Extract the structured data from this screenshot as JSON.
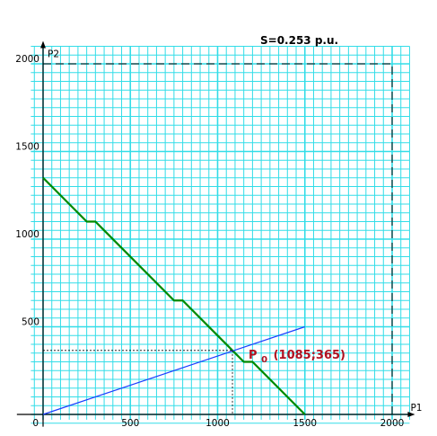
{
  "chart_data": {
    "type": "line",
    "xlabel": "P1",
    "ylabel": "P2",
    "xlim": [
      0,
      2100
    ],
    "ylim": [
      0,
      2100
    ],
    "x_ticks": [
      0,
      500,
      1000,
      1500,
      2000
    ],
    "y_ticks": [
      0,
      500,
      1000,
      1500,
      2000
    ],
    "grid": true,
    "minor_grid_step": 50,
    "colors": {
      "grid": "#33dde8",
      "green": "#008a00",
      "blue": "#1a3cff",
      "point_label": "#b01020"
    },
    "limit_box": [
      [
        0,
        2000
      ],
      [
        2000,
        2000
      ],
      [
        2000,
        0
      ]
    ],
    "series": [
      {
        "color": "#008a00",
        "points": [
          [
            0,
            1350
          ],
          [
            250,
            1100
          ],
          [
            300,
            1100
          ],
          [
            750,
            650
          ],
          [
            800,
            650
          ],
          [
            1150,
            300
          ],
          [
            1200,
            300
          ],
          [
            1500,
            0
          ]
        ]
      },
      {
        "color": "#1a3cff",
        "points": [
          [
            0,
            0
          ],
          [
            1500,
            500
          ]
        ]
      }
    ],
    "operating_point": {
      "x": 1085,
      "y": 365,
      "label_main": "P",
      "label_sub": "0",
      "label_coords": "(1085;365)"
    },
    "annotation": "S=0.253 p.u."
  }
}
